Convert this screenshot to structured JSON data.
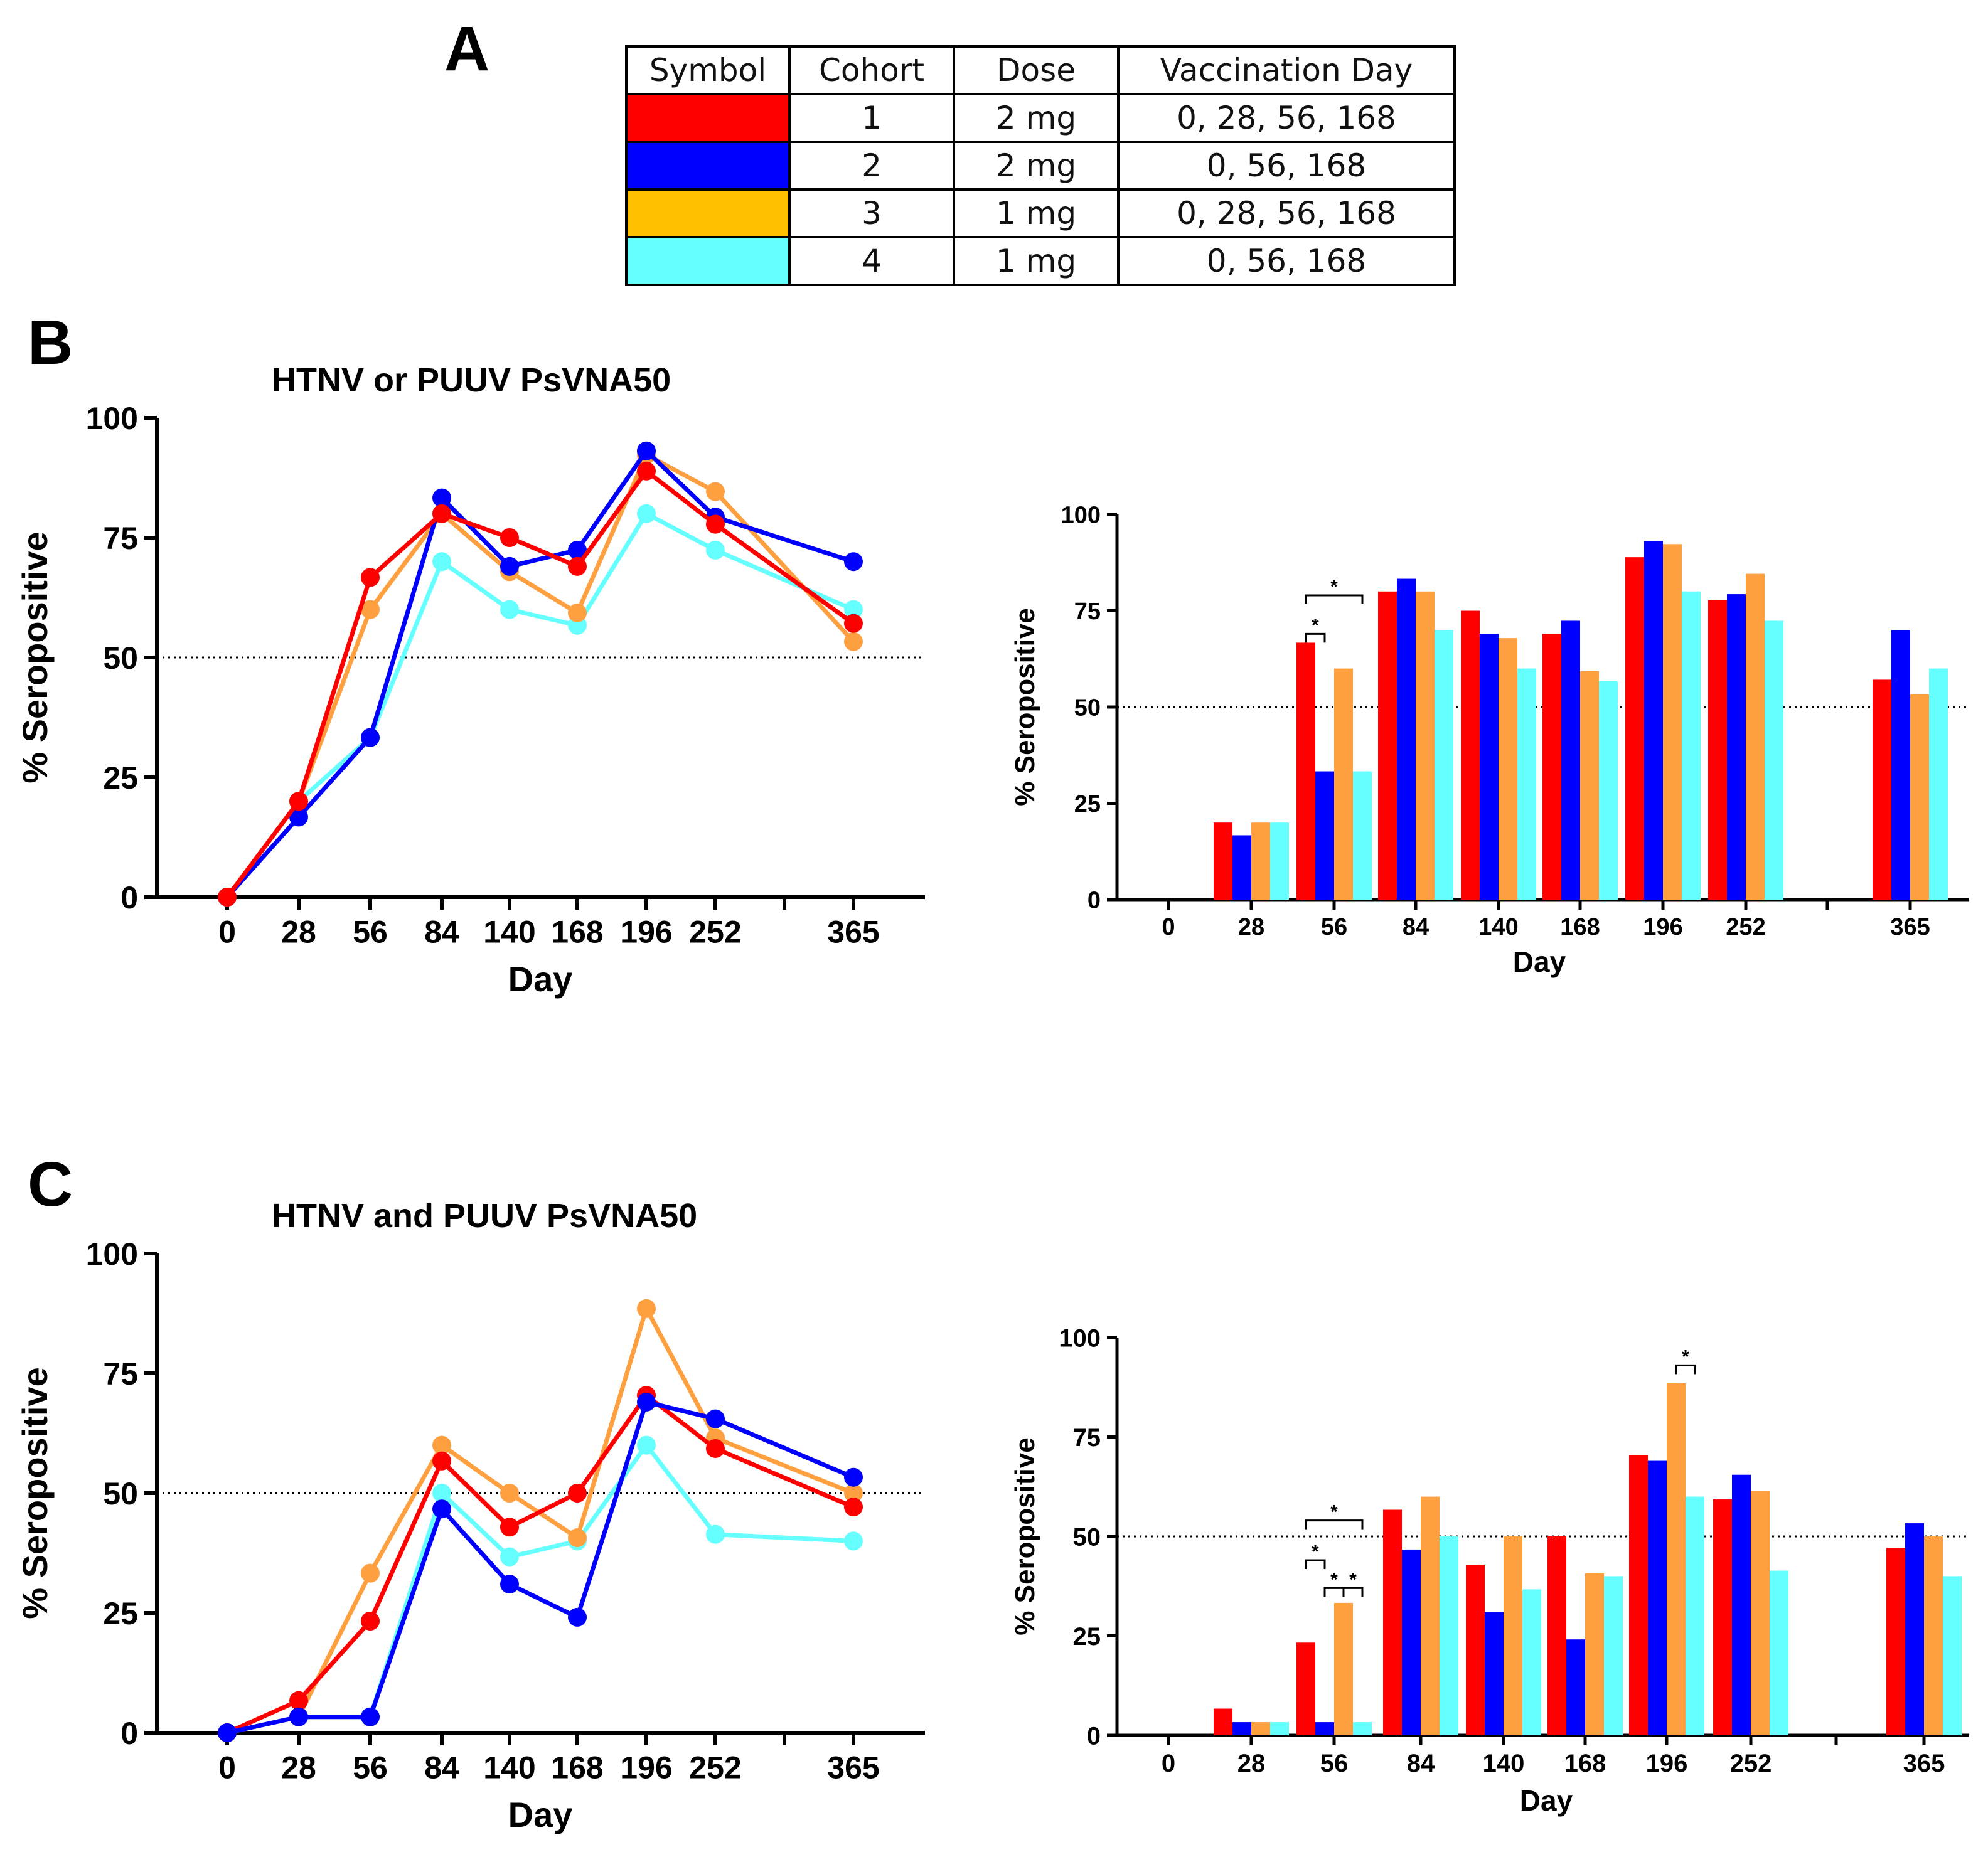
{
  "panel_labels": {
    "a": "A",
    "b": "B",
    "c": "C"
  },
  "legend_table": {
    "headers": [
      "Symbol",
      "Cohort",
      "Dose",
      "Vaccination Day"
    ],
    "rows": [
      {
        "color": "#ff0000",
        "cohort": "1",
        "dose": "2 mg",
        "days": "0, 28, 56, 168"
      },
      {
        "color": "#0000ff",
        "cohort": "2",
        "dose": "2 mg",
        "days": "0, 56, 168"
      },
      {
        "color": "#ffc000",
        "cohort": "3",
        "dose": "1 mg",
        "days": "0, 28, 56, 168"
      },
      {
        "color": "#66ffff",
        "cohort": "4",
        "dose": "1 mg",
        "days": "0, 56, 168"
      }
    ]
  },
  "chart_data": [
    {
      "id": "B-line",
      "type": "line",
      "title": "HTNV or PUUV PsVNA50",
      "xlabel": "Day",
      "ylabel": "% Seropositive",
      "categories": [
        "0",
        "28",
        "56",
        "84",
        "140",
        "168",
        "196",
        "252",
        "365"
      ],
      "ylim": [
        0,
        100
      ],
      "yticks": [
        0,
        25,
        50,
        75,
        100
      ],
      "reference_line": 50,
      "series": [
        {
          "name": "Cohort 4",
          "color": "#66ffff",
          "values": [
            0,
            20,
            33.3,
            70,
            60,
            56.7,
            80,
            72.4,
            60
          ]
        },
        {
          "name": "Cohort 3",
          "color": "#ffa040",
          "values": [
            0,
            20,
            60,
            80,
            67.9,
            59.3,
            92.3,
            84.6,
            53.3
          ]
        },
        {
          "name": "Cohort 2",
          "color": "#0000ff",
          "values": [
            0,
            16.7,
            33.3,
            83.3,
            69,
            72.4,
            93.1,
            79.3,
            70
          ]
        },
        {
          "name": "Cohort 1",
          "color": "#ff0000",
          "values": [
            0,
            20,
            66.7,
            80,
            75,
            69,
            88.9,
            77.8,
            57.1
          ]
        }
      ]
    },
    {
      "id": "B-bar",
      "type": "bar",
      "xlabel": "Day",
      "ylabel": "% Seropositive",
      "categories": [
        "0",
        "28",
        "56",
        "84",
        "140",
        "168",
        "196",
        "252",
        "365"
      ],
      "ylim": [
        0,
        100
      ],
      "yticks": [
        0,
        25,
        50,
        75,
        100
      ],
      "reference_line": 50,
      "series": [
        {
          "name": "Cohort 1",
          "color": "#ff0000",
          "values": [
            0,
            20,
            66.7,
            80,
            75,
            69,
            88.9,
            77.8,
            57.1
          ]
        },
        {
          "name": "Cohort 2",
          "color": "#0000ff",
          "values": [
            0,
            16.7,
            33.3,
            83.3,
            69,
            72.4,
            93.1,
            79.3,
            70
          ]
        },
        {
          "name": "Cohort 3",
          "color": "#ffa040",
          "values": [
            0,
            20,
            60,
            80,
            67.9,
            59.3,
            92.3,
            84.6,
            53.3
          ]
        },
        {
          "name": "Cohort 4",
          "color": "#66ffff",
          "values": [
            0,
            20,
            33.3,
            70,
            60,
            56.7,
            80,
            72.4,
            60
          ]
        }
      ],
      "significance": [
        {
          "category": "56",
          "from": 0,
          "to": 1,
          "label": "*",
          "y": 69
        },
        {
          "category": "56",
          "from": 0,
          "to": 3,
          "label": "*",
          "y": 79
        }
      ]
    },
    {
      "id": "C-line",
      "type": "line",
      "title": "HTNV and PUUV PsVNA50",
      "xlabel": "Day",
      "ylabel": "% Seropositive",
      "categories": [
        "0",
        "28",
        "56",
        "84",
        "140",
        "168",
        "196",
        "252",
        "365"
      ],
      "ylim": [
        0,
        100
      ],
      "yticks": [
        0,
        25,
        50,
        75,
        100
      ],
      "reference_line": 50,
      "series": [
        {
          "name": "Cohort 4",
          "color": "#66ffff",
          "values": [
            0,
            3.3,
            3.3,
            50,
            36.7,
            40,
            60,
            41.4,
            40
          ]
        },
        {
          "name": "Cohort 3",
          "color": "#ffa040",
          "values": [
            0,
            3.3,
            33.3,
            60,
            50,
            40.7,
            88.5,
            61.5,
            50
          ]
        },
        {
          "name": "Cohort 1",
          "color": "#ff0000",
          "values": [
            0,
            6.7,
            23.3,
            56.7,
            42.9,
            50,
            70.4,
            59.3,
            47.1
          ]
        },
        {
          "name": "Cohort 2",
          "color": "#0000ff",
          "values": [
            0,
            3.3,
            3.3,
            46.7,
            31,
            24.1,
            69,
            65.5,
            53.3
          ]
        }
      ]
    },
    {
      "id": "C-bar",
      "type": "bar",
      "xlabel": "Day",
      "ylabel": "% Seropositive",
      "categories": [
        "0",
        "28",
        "56",
        "84",
        "140",
        "168",
        "196",
        "252",
        "365"
      ],
      "ylim": [
        0,
        100
      ],
      "yticks": [
        0,
        25,
        50,
        75,
        100
      ],
      "reference_line": 50,
      "series": [
        {
          "name": "Cohort 1",
          "color": "#ff0000",
          "values": [
            0,
            6.7,
            23.3,
            56.7,
            42.9,
            50,
            70.4,
            59.3,
            47.1
          ]
        },
        {
          "name": "Cohort 2",
          "color": "#0000ff",
          "values": [
            0,
            3.3,
            3.3,
            46.7,
            31,
            24.1,
            69,
            65.5,
            53.3
          ]
        },
        {
          "name": "Cohort 3",
          "color": "#ffa040",
          "values": [
            0,
            3.3,
            33.3,
            60,
            50,
            40.7,
            88.5,
            61.5,
            50
          ]
        },
        {
          "name": "Cohort 4",
          "color": "#66ffff",
          "values": [
            0,
            3.3,
            3.3,
            50,
            36.7,
            40,
            60,
            41.4,
            40
          ]
        }
      ],
      "significance": [
        {
          "category": "56",
          "from": 0,
          "to": 3,
          "label": "*",
          "y": 54
        },
        {
          "category": "56",
          "from": 0,
          "to": 1,
          "label": "*",
          "y": 44
        },
        {
          "category": "56",
          "from": 1,
          "to": 2,
          "label": "*",
          "y": 37
        },
        {
          "category": "56",
          "from": 2,
          "to": 3,
          "label": "*",
          "y": 37
        },
        {
          "category": "196",
          "from": 2,
          "to": 3,
          "label": "*",
          "y": 93
        }
      ]
    }
  ]
}
